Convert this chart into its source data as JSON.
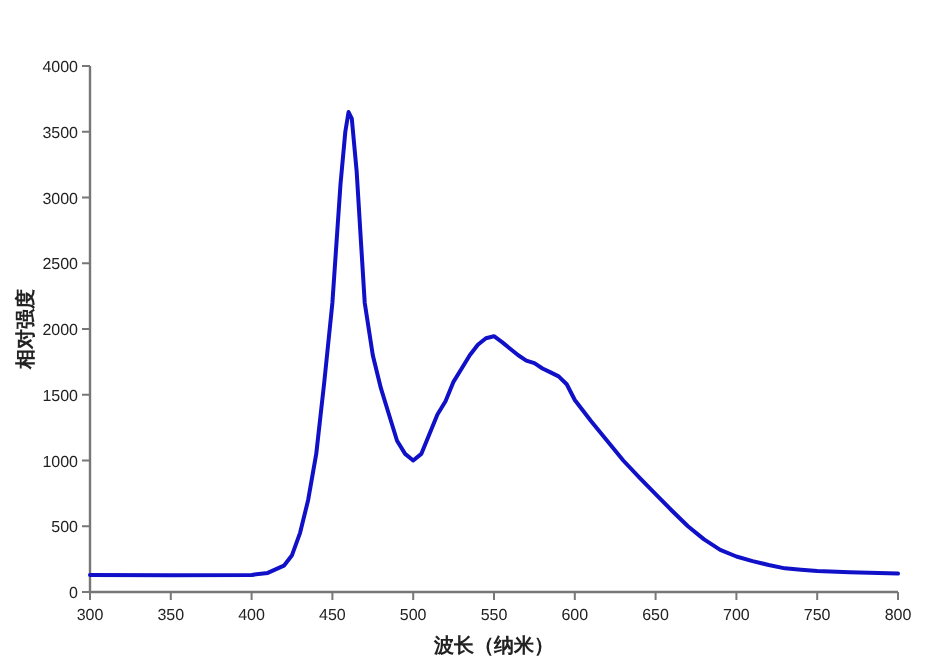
{
  "chart_data": {
    "type": "line",
    "xlabel": "波长（纳米）",
    "ylabel": "相对强度",
    "color": "#1010c8",
    "x": [
      300,
      350,
      400,
      410,
      420,
      425,
      430,
      435,
      440,
      445,
      450,
      455,
      458,
      460,
      462,
      465,
      468,
      470,
      475,
      480,
      485,
      490,
      495,
      500,
      505,
      510,
      515,
      520,
      525,
      530,
      535,
      540,
      545,
      550,
      555,
      560,
      565,
      570,
      575,
      580,
      585,
      590,
      595,
      600,
      605,
      610,
      620,
      630,
      640,
      650,
      660,
      670,
      680,
      690,
      700,
      710,
      720,
      730,
      740,
      750,
      770,
      800
    ],
    "values": [
      130,
      128,
      130,
      145,
      200,
      280,
      450,
      700,
      1050,
      1600,
      2200,
      3100,
      3500,
      3650,
      3600,
      3200,
      2600,
      2200,
      1800,
      1550,
      1350,
      1150,
      1050,
      1000,
      1050,
      1200,
      1350,
      1450,
      1600,
      1700,
      1800,
      1880,
      1930,
      1945,
      1900,
      1850,
      1800,
      1760,
      1740,
      1700,
      1670,
      1640,
      1580,
      1460,
      1380,
      1300,
      1150,
      1000,
      870,
      745,
      620,
      500,
      400,
      320,
      270,
      235,
      205,
      180,
      170,
      160,
      150,
      140
    ],
    "xlim": [
      300,
      800
    ],
    "ylim": [
      0,
      4000
    ],
    "xticks": [
      300,
      350,
      400,
      450,
      500,
      550,
      600,
      650,
      700,
      750,
      800
    ],
    "yticks": [
      0,
      500,
      1000,
      1500,
      2000,
      2500,
      3000,
      3500,
      4000
    ],
    "line_style": "solid"
  }
}
